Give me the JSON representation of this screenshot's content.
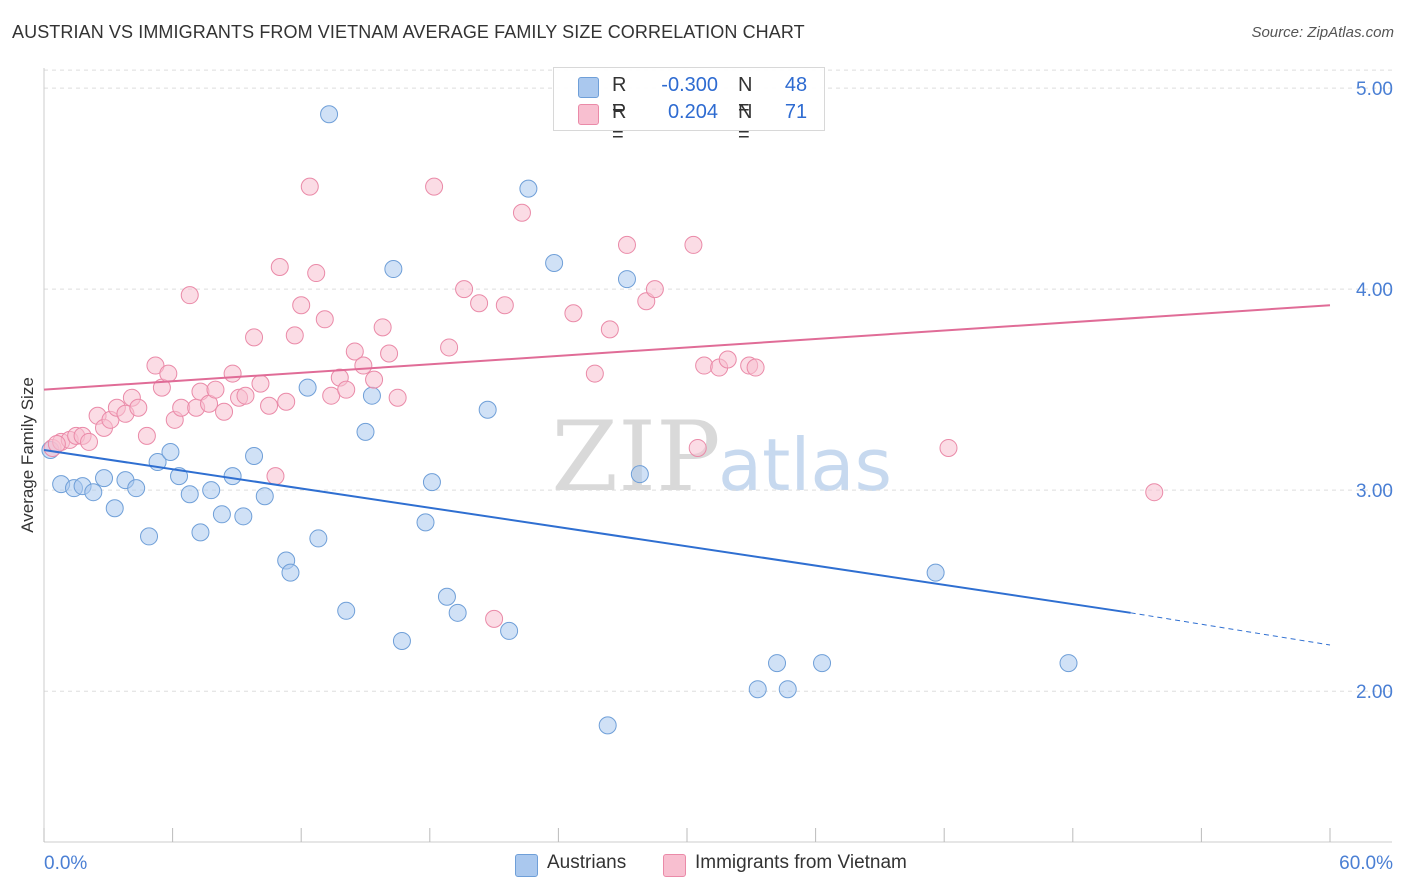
{
  "header": {
    "title": "AUSTRIAN VS IMMIGRANTS FROM VIETNAM AVERAGE FAMILY SIZE CORRELATION CHART",
    "source": "Source: ZipAtlas.com"
  },
  "watermark": {
    "zip": "ZIP",
    "atlas": "atlas"
  },
  "legend": {
    "r_label": "R =",
    "n_label": "N =",
    "rows": [
      {
        "r": "-0.300",
        "n": "48"
      },
      {
        "r": "0.204",
        "n": "71"
      }
    ]
  },
  "bottom_legend": {
    "austrians": "Austrians",
    "vietnam": "Immigrants from Vietnam"
  },
  "colors": {
    "austrians_fill": "#aac8ee",
    "austrians_stroke": "#6f9fd8",
    "austrians_line": "#2f6fd1",
    "vietnam_fill": "#f8bfd0",
    "vietnam_stroke": "#ea8aa8",
    "vietnam_line": "#e06c97",
    "tick_label": "#4a7fd4",
    "grid": "#dddddd"
  },
  "chart_data": {
    "type": "scatter",
    "title": "AUSTRIAN VS IMMIGRANTS FROM VIETNAM AVERAGE FAMILY SIZE CORRELATION CHART",
    "xlabel": "",
    "ylabel": "Average Family Size",
    "xlim": [
      0,
      60
    ],
    "ylim": [
      1.25,
      5.1
    ],
    "x_tick_labels": [
      "0.0%",
      "60.0%"
    ],
    "y_ticks": [
      2.0,
      3.0,
      4.0,
      5.0
    ],
    "y_tick_labels": [
      "2.00",
      "3.00",
      "4.00",
      "5.00"
    ],
    "grid": true,
    "legend_position": "top-center",
    "series": [
      {
        "name": "Austrians",
        "r": -0.3,
        "n": 48,
        "trend": {
          "x0": 0,
          "y0": 3.2,
          "x1": 50.7,
          "y1": 2.39,
          "dashed_to_x": 60,
          "dashed_to_y": 2.23
        },
        "points": [
          [
            0.3,
            3.2
          ],
          [
            0.8,
            3.03
          ],
          [
            1.4,
            3.01
          ],
          [
            1.8,
            3.02
          ],
          [
            2.3,
            2.99
          ],
          [
            2.8,
            3.06
          ],
          [
            3.3,
            2.91
          ],
          [
            3.8,
            3.05
          ],
          [
            4.3,
            3.01
          ],
          [
            4.9,
            2.77
          ],
          [
            5.3,
            3.14
          ],
          [
            5.9,
            3.19
          ],
          [
            6.3,
            3.07
          ],
          [
            6.8,
            2.98
          ],
          [
            7.3,
            2.79
          ],
          [
            7.8,
            3.0
          ],
          [
            8.3,
            2.88
          ],
          [
            8.8,
            3.07
          ],
          [
            9.3,
            2.87
          ],
          [
            9.8,
            3.17
          ],
          [
            10.3,
            2.97
          ],
          [
            11.3,
            2.65
          ],
          [
            11.5,
            2.59
          ],
          [
            12.3,
            3.51
          ],
          [
            12.8,
            2.76
          ],
          [
            13.3,
            4.87
          ],
          [
            14.1,
            2.4
          ],
          [
            15.0,
            3.29
          ],
          [
            15.3,
            3.47
          ],
          [
            16.3,
            4.1
          ],
          [
            16.7,
            2.25
          ],
          [
            17.8,
            2.84
          ],
          [
            18.1,
            3.04
          ],
          [
            18.8,
            2.47
          ],
          [
            19.3,
            2.39
          ],
          [
            20.7,
            3.4
          ],
          [
            21.7,
            2.3
          ],
          [
            22.6,
            4.5
          ],
          [
            23.8,
            4.13
          ],
          [
            26.3,
            1.83
          ],
          [
            27.2,
            4.05
          ],
          [
            27.8,
            3.08
          ],
          [
            33.3,
            2.01
          ],
          [
            34.2,
            2.14
          ],
          [
            34.7,
            2.01
          ],
          [
            36.3,
            2.14
          ],
          [
            41.6,
            2.59
          ],
          [
            47.8,
            2.14
          ]
        ]
      },
      {
        "name": "Immigrants from Vietnam",
        "r": 0.204,
        "n": 71,
        "trend": {
          "x0": 0,
          "y0": 3.5,
          "x1": 60,
          "y1": 3.92
        },
        "points": [
          [
            0.4,
            3.21
          ],
          [
            0.8,
            3.24
          ],
          [
            1.2,
            3.25
          ],
          [
            1.5,
            3.27
          ],
          [
            1.8,
            3.27
          ],
          [
            2.1,
            3.24
          ],
          [
            2.5,
            3.37
          ],
          [
            2.8,
            3.31
          ],
          [
            3.1,
            3.35
          ],
          [
            3.4,
            3.41
          ],
          [
            3.8,
            3.38
          ],
          [
            4.1,
            3.46
          ],
          [
            4.4,
            3.41
          ],
          [
            4.8,
            3.27
          ],
          [
            5.2,
            3.62
          ],
          [
            5.5,
            3.51
          ],
          [
            5.8,
            3.58
          ],
          [
            6.1,
            3.35
          ],
          [
            6.4,
            3.41
          ],
          [
            6.8,
            3.97
          ],
          [
            7.1,
            3.41
          ],
          [
            7.3,
            3.49
          ],
          [
            7.7,
            3.43
          ],
          [
            8.0,
            3.5
          ],
          [
            8.4,
            3.39
          ],
          [
            8.8,
            3.58
          ],
          [
            9.1,
            3.46
          ],
          [
            9.4,
            3.47
          ],
          [
            9.8,
            3.76
          ],
          [
            10.1,
            3.53
          ],
          [
            10.5,
            3.42
          ],
          [
            10.8,
            3.07
          ],
          [
            11.0,
            4.11
          ],
          [
            11.3,
            3.44
          ],
          [
            11.7,
            3.77
          ],
          [
            12.0,
            3.92
          ],
          [
            12.4,
            4.51
          ],
          [
            12.7,
            4.08
          ],
          [
            13.1,
            3.85
          ],
          [
            13.4,
            3.47
          ],
          [
            13.8,
            3.56
          ],
          [
            14.1,
            3.5
          ],
          [
            14.5,
            3.69
          ],
          [
            14.9,
            3.62
          ],
          [
            15.4,
            3.55
          ],
          [
            15.8,
            3.81
          ],
          [
            16.1,
            3.68
          ],
          [
            16.5,
            3.46
          ],
          [
            18.2,
            4.51
          ],
          [
            18.9,
            3.71
          ],
          [
            19.6,
            4.0
          ],
          [
            20.3,
            3.93
          ],
          [
            21.0,
            2.36
          ],
          [
            21.5,
            3.92
          ],
          [
            22.3,
            4.38
          ],
          [
            24.7,
            3.88
          ],
          [
            25.7,
            3.58
          ],
          [
            26.4,
            3.8
          ],
          [
            27.2,
            4.22
          ],
          [
            28.1,
            3.94
          ],
          [
            28.5,
            4.0
          ],
          [
            30.3,
            4.22
          ],
          [
            30.5,
            3.21
          ],
          [
            30.8,
            3.62
          ],
          [
            31.5,
            3.61
          ],
          [
            31.9,
            3.65
          ],
          [
            32.9,
            3.62
          ],
          [
            33.2,
            3.61
          ],
          [
            42.2,
            3.21
          ],
          [
            51.8,
            2.99
          ],
          [
            0.6,
            3.23
          ]
        ]
      }
    ]
  }
}
